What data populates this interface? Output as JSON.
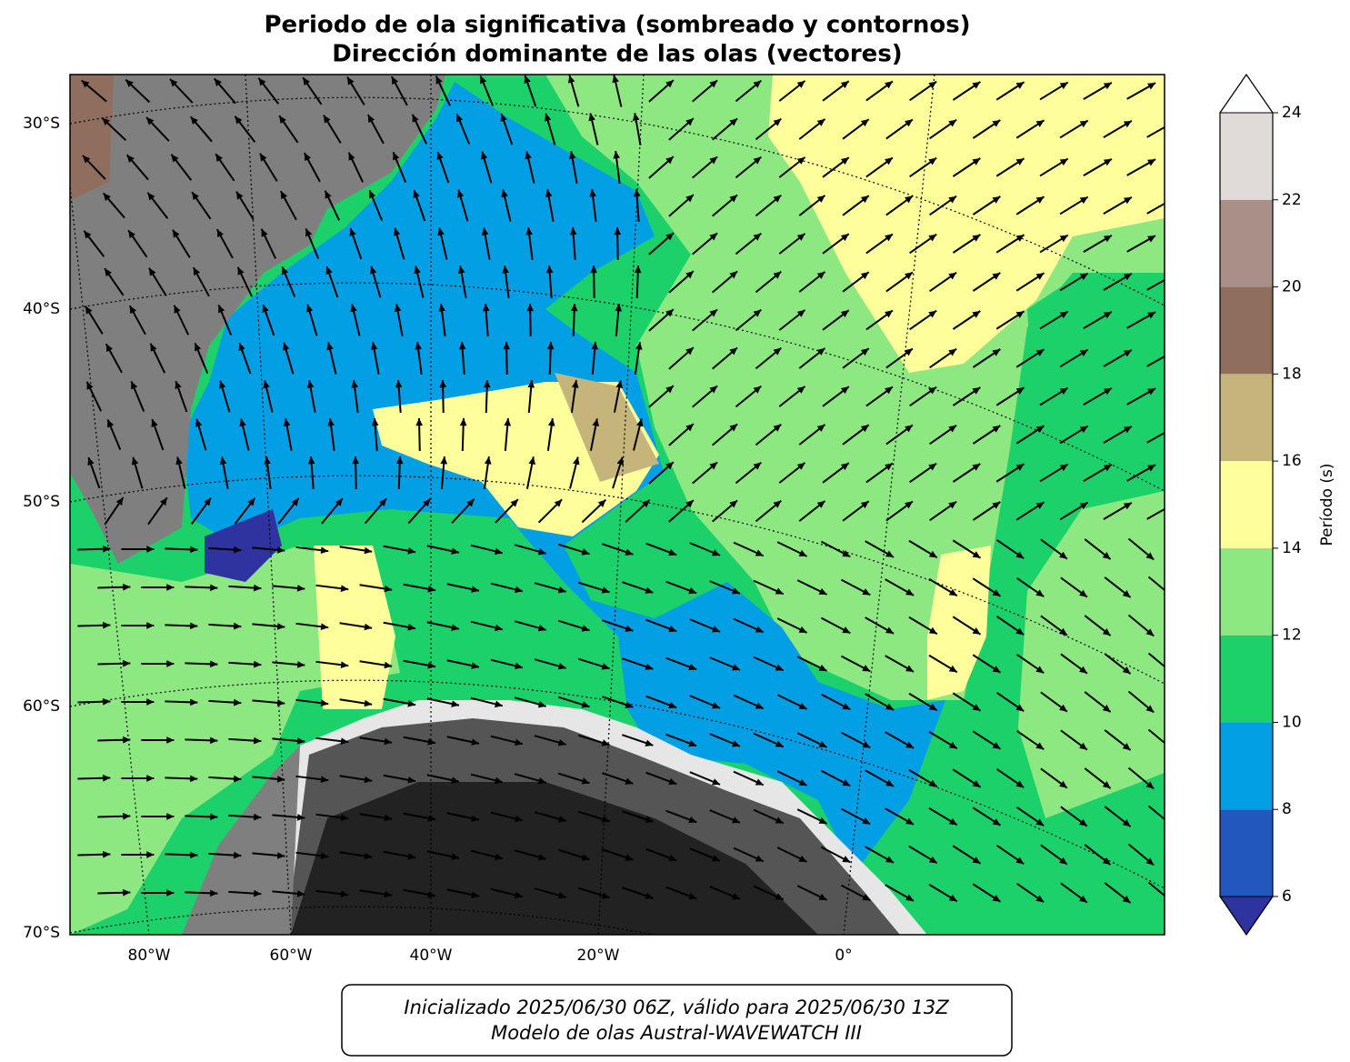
{
  "title": [
    "Periodo de ola significativa (sombreado y contornos)",
    "Dirección dominante de las olas (vectores)"
  ],
  "map": {
    "lat_labels": [
      {
        "value": -30,
        "label": "30°S"
      },
      {
        "value": -40,
        "label": "40°S"
      },
      {
        "value": -50,
        "label": "50°S"
      },
      {
        "value": -60,
        "label": "60°S"
      },
      {
        "value": -70,
        "label": "70°S"
      }
    ],
    "lon_labels": [
      {
        "value": -80,
        "label": "80°W"
      },
      {
        "value": -60,
        "label": "60°W"
      },
      {
        "value": -40,
        "label": "40°W"
      },
      {
        "value": -20,
        "label": "20°W"
      },
      {
        "value": 0,
        "label": "0°"
      }
    ]
  },
  "colorbar": {
    "label": "Período (s)",
    "levels": [
      6,
      8,
      10,
      12,
      14,
      16,
      18,
      20,
      22,
      24
    ],
    "colors": [
      "#2257be",
      "#039fe5",
      "#1dd16a",
      "#8ee881",
      "#fefe9b",
      "#c5b57a",
      "#8f6e5e",
      "#a88f87",
      "#e0dad8"
    ],
    "under_color": "#2f33a0",
    "over_color": "#ffffff"
  },
  "footer": [
    "Inicializado 2025/06/30 06Z, válido para 2025/06/30 13Z",
    "Modelo de olas Austral-WAVEWATCH III"
  ]
}
